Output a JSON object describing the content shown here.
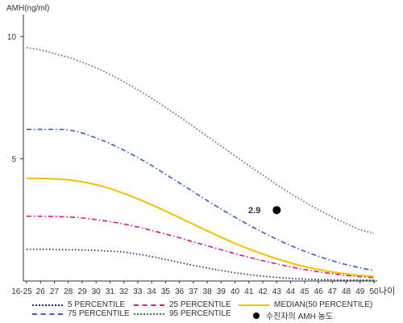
{
  "chart_data": {
    "type": "line",
    "ylabel": "AMH(ng/ml)",
    "xlabel": "나이",
    "categories": [
      "16-25",
      "26",
      "27",
      "28",
      "29",
      "30",
      "31",
      "32",
      "33",
      "34",
      "35",
      "36",
      "37",
      "38",
      "39",
      "40",
      "41",
      "42",
      "43",
      "44",
      "45",
      "46",
      "47",
      "48",
      "49",
      "50"
    ],
    "yticks": [
      5,
      10
    ],
    "ylim": [
      0,
      10.9
    ],
    "grid": false,
    "legend_position": "bottom",
    "series": [
      {
        "name": "5 PERCENTILE",
        "color": "#1a237e",
        "style": "dotted",
        "values": [
          1.3,
          1.3,
          1.29,
          1.28,
          1.27,
          1.25,
          1.22,
          1.18,
          1.1,
          1.0,
          0.88,
          0.76,
          0.64,
          0.53,
          0.43,
          0.34,
          0.26,
          0.2,
          0.15,
          0.11,
          0.08,
          0.06,
          0.05,
          0.04,
          0.04,
          0.04
        ]
      },
      {
        "name": "75 PERCENTILE",
        "color": "#3a5fc8",
        "style": "dashdot",
        "values": [
          6.2,
          6.2,
          6.2,
          6.18,
          6.05,
          5.85,
          5.62,
          5.35,
          5.05,
          4.72,
          4.37,
          4.01,
          3.65,
          3.29,
          2.94,
          2.61,
          2.29,
          1.99,
          1.71,
          1.45,
          1.22,
          1.01,
          0.83,
          0.67,
          0.54,
          0.43
        ]
      },
      {
        "name": "25 PERCENTILE",
        "color": "#e0168c",
        "style": "dashdot",
        "values": [
          2.65,
          2.65,
          2.64,
          2.62,
          2.58,
          2.51,
          2.43,
          2.33,
          2.21,
          2.07,
          1.92,
          1.77,
          1.6,
          1.44,
          1.28,
          1.12,
          0.97,
          0.83,
          0.7,
          0.58,
          0.47,
          0.38,
          0.3,
          0.23,
          0.18,
          0.14
        ]
      },
      {
        "name": "95 PERCENTILE",
        "color": "#3a7a4a",
        "style": "dotted",
        "values": [
          9.55,
          9.45,
          9.3,
          9.15,
          8.95,
          8.72,
          8.45,
          8.15,
          7.82,
          7.48,
          7.1,
          6.72,
          6.32,
          5.92,
          5.52,
          5.12,
          4.72,
          4.33,
          3.95,
          3.58,
          3.24,
          2.92,
          2.62,
          2.35,
          2.1,
          1.95
        ]
      },
      {
        "name": "MEDIAN(50 PERCENTILE)",
        "color": "#f2c200",
        "style": "solid",
        "values": [
          4.2,
          4.2,
          4.18,
          4.14,
          4.06,
          3.94,
          3.78,
          3.58,
          3.36,
          3.12,
          2.86,
          2.59,
          2.32,
          2.05,
          1.79,
          1.54,
          1.31,
          1.1,
          0.91,
          0.74,
          0.59,
          0.47,
          0.37,
          0.29,
          0.23,
          0.19
        ]
      }
    ],
    "points": [
      {
        "name": "수진자의 AMH 농도",
        "x": "43",
        "y": 2.9,
        "label": "2.9",
        "color": "#000000"
      }
    ]
  }
}
